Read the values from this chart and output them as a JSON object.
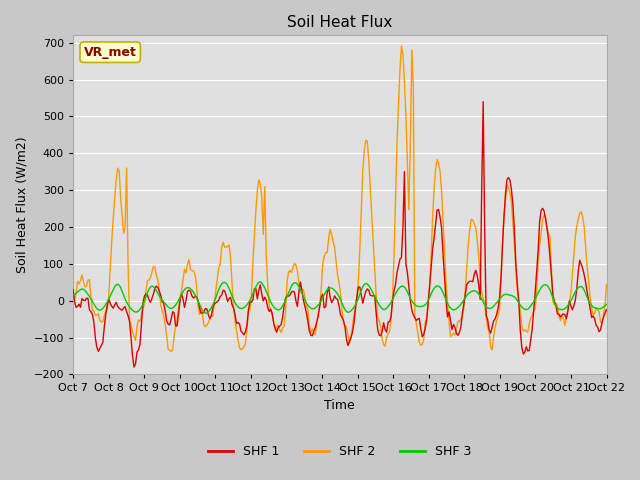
{
  "title": "Soil Heat Flux",
  "xlabel": "Time",
  "ylabel": "Soil Heat Flux (W/m2)",
  "xlim": [
    0,
    15
  ],
  "ylim": [
    -200,
    720
  ],
  "yticks": [
    -200,
    -100,
    0,
    100,
    200,
    300,
    400,
    500,
    600,
    700
  ],
  "xtick_labels": [
    "Oct 7",
    "Oct 8",
    "Oct 9",
    "Oct 10",
    "Oct 11",
    "Oct 12",
    "Oct 13",
    "Oct 14",
    "Oct 15",
    "Oct 16",
    "Oct 17",
    "Oct 18",
    "Oct 19",
    "Oct 20",
    "Oct 21",
    "Oct 22"
  ],
  "legend_labels": [
    "SHF 1",
    "SHF 2",
    "SHF 3"
  ],
  "line_colors": [
    "#dd0000",
    "#ff9900",
    "#00cc00"
  ],
  "annotation_text": "VR_met",
  "annotation_box_facecolor": "#ffffcc",
  "annotation_box_edgecolor": "#ccaa00",
  "annotation_text_color": "#8B0000",
  "fig_facecolor": "#c8c8c8",
  "axes_facecolor": "#e0e0e0",
  "grid_color": "#ffffff",
  "title_fontsize": 11,
  "label_fontsize": 9,
  "tick_fontsize": 8,
  "legend_fontsize": 9,
  "linewidth": 1.0
}
